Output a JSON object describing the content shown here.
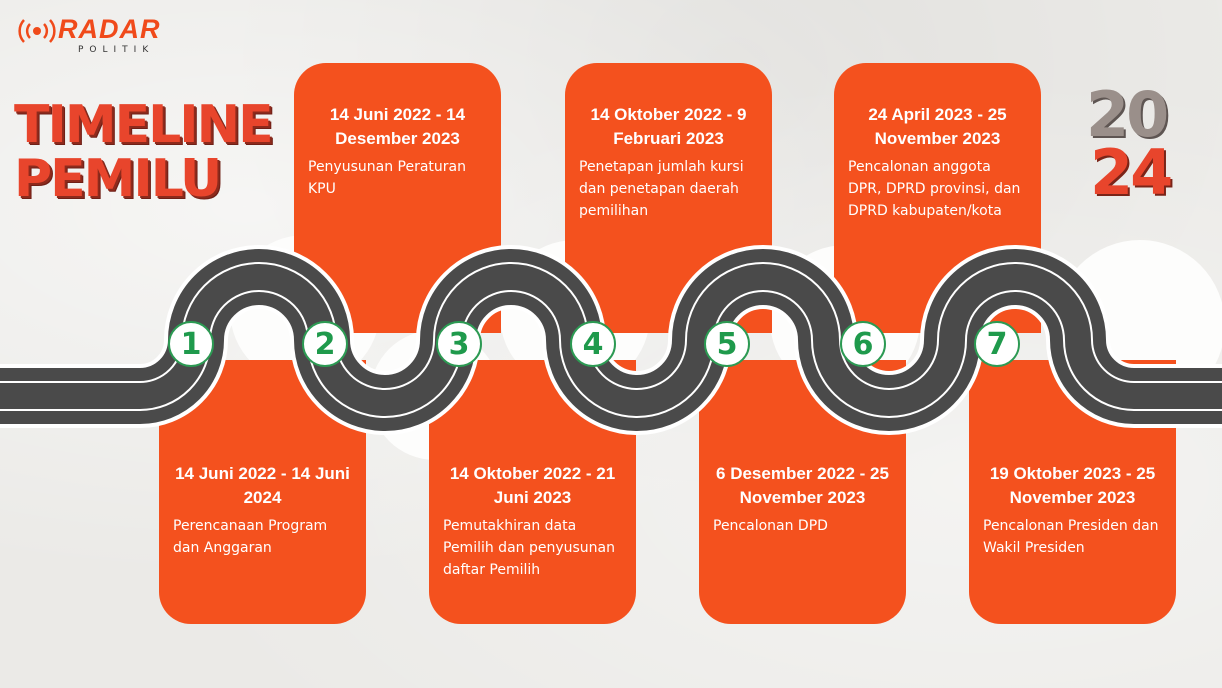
{
  "logo": {
    "word": "RADAR",
    "sub": "POLITIK"
  },
  "title": {
    "line1": "TIMELINE",
    "line2": "PEMILU"
  },
  "year": {
    "part1": "20",
    "part2": "24"
  },
  "steps": [
    {
      "number": "1",
      "date": "14 Juni 2022 - 14 Juni 2024",
      "desc": "Perencanaan Program dan Anggaran"
    },
    {
      "number": "2",
      "date": "14 Juni 2022 - 14 Desember 2023",
      "desc": "Penyusunan Peraturan KPU"
    },
    {
      "number": "3",
      "date": "14 Oktober 2022 - 21 Juni 2023",
      "desc": "Pemutakhiran data Pemilih dan penyusunan daftar Pemilih"
    },
    {
      "number": "4",
      "date": "14 Oktober 2022 - 9 Februari 2023",
      "desc": "Penetapan jumlah kursi dan penetapan daerah pemilihan"
    },
    {
      "number": "5",
      "date": "6 Desember 2022 - 25 November 2023",
      "desc": "Pencalonan DPD"
    },
    {
      "number": "6",
      "date": "24 April 2023 - 25 November 2023",
      "desc": "Pencalonan anggota DPR, DPRD provinsi, dan DPRD kabupaten/kota"
    },
    {
      "number": "7",
      "date": "19 Oktober 2023 - 25 November 2023",
      "desc": "Pencalonan Presiden dan Wakil Presiden"
    }
  ],
  "colors": {
    "accent": "#f4511e",
    "road": "#4a4a4a",
    "number": "#1f9a4c"
  }
}
